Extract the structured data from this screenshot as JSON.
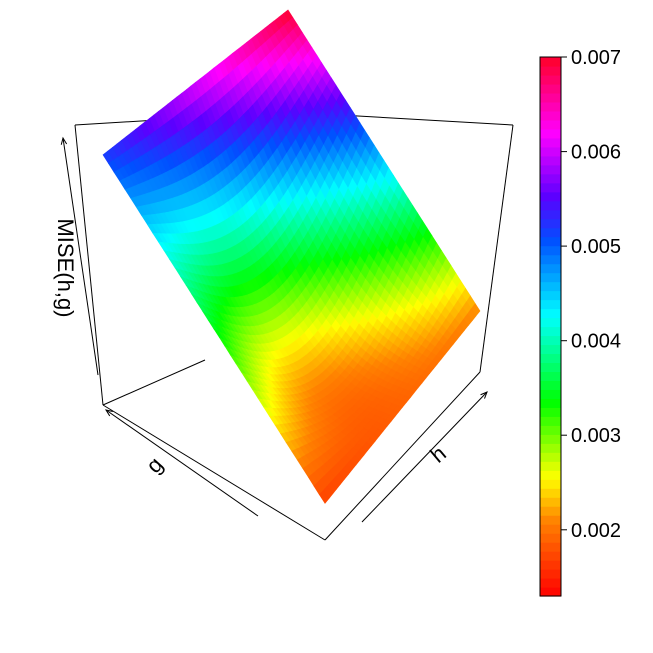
{
  "chart_data": {
    "type": "surface",
    "zlabel": "MISE(h,g)",
    "xlabel": "g",
    "ylabel": "h",
    "zlim": [
      0.0013,
      0.007
    ],
    "surface": {
      "grid": 40,
      "corner_values": {
        "back": 0.007,
        "left": 0.0052,
        "right": 0.0021,
        "front": 0.0017
      },
      "minimum": 0.0013
    },
    "colorbar": {
      "range": [
        0.0013,
        0.007
      ],
      "ticks": [
        0.002,
        0.003,
        0.004,
        0.005,
        0.006,
        0.007
      ],
      "tick_labels": [
        "0.002",
        "0.003",
        "0.004",
        "0.005",
        "0.006",
        "0.007"
      ],
      "palette": "rainbow red-to-red (red, orange, yellow, green, cyan, blue, magenta, red)"
    }
  }
}
